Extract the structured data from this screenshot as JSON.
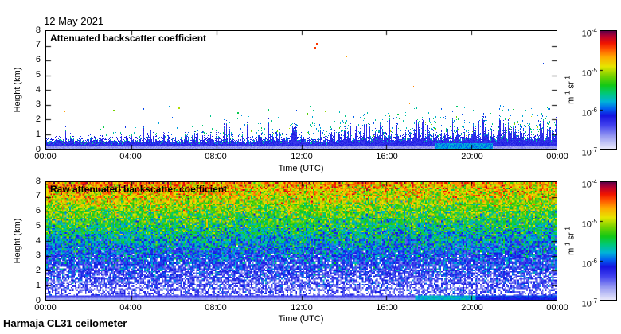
{
  "figure": {
    "date_label": "12 May 2021",
    "footer_label": "Harmaja CL31 ceilometer",
    "background": "#ffffff"
  },
  "axes": {
    "x_label": "Time (UTC)",
    "y_label": "Height (km)",
    "x_ticks": [
      "00:00",
      "04:00",
      "08:00",
      "12:00",
      "16:00",
      "20:00",
      "00:00"
    ],
    "y_ticks": [
      "0",
      "1",
      "2",
      "3",
      "4",
      "5",
      "6",
      "7",
      "8"
    ]
  },
  "panels": [
    {
      "title": "Attenuated backscatter coefficient"
    },
    {
      "title": "Raw attenuated backscatter coefficient"
    }
  ],
  "colorbar": {
    "ticks": [
      {
        "base": "10",
        "exp": "-4"
      },
      {
        "base": "10",
        "exp": "-5"
      },
      {
        "base": "10",
        "exp": "-6"
      },
      {
        "base": "10",
        "exp": "-7"
      }
    ],
    "unit_parts": {
      "m": "m",
      "m_exp": "-1",
      "sr": " sr",
      "sr_exp": "-1"
    }
  },
  "colors": {
    "axis": "#000000",
    "text": "#000000",
    "colormap_stops": [
      [
        0.0,
        "#e6e6fa"
      ],
      [
        0.1,
        "#9a9ef2"
      ],
      [
        0.2,
        "#4040ee"
      ],
      [
        0.28,
        "#1414e0"
      ],
      [
        0.34,
        "#0064f0"
      ],
      [
        0.4,
        "#00b4d8"
      ],
      [
        0.47,
        "#00c878"
      ],
      [
        0.54,
        "#14c814"
      ],
      [
        0.62,
        "#78d200"
      ],
      [
        0.7,
        "#e6e600"
      ],
      [
        0.78,
        "#ffaa00"
      ],
      [
        0.85,
        "#ff5000"
      ],
      [
        0.9,
        "#f01400"
      ],
      [
        0.96,
        "#b40032"
      ],
      [
        1.0,
        "#640046"
      ]
    ]
  },
  "chart_data": [
    {
      "type": "heatmap",
      "title": "Attenuated backscatter coefficient",
      "xlabel": "Time (UTC)",
      "ylabel": "Height (km)",
      "x_range_hours": [
        0,
        24
      ],
      "x_tick_labels": [
        "00:00",
        "04:00",
        "08:00",
        "12:00",
        "16:00",
        "20:00",
        "00:00"
      ],
      "ylim": [
        0,
        8
      ],
      "y_tick_step_km": 1,
      "color_scale": {
        "type": "log",
        "min": 1e-07,
        "max": 0.0001,
        "unit": "m-1 sr-1",
        "colormap": "white-blue-green-yellow-red-maroon (jet-like)"
      },
      "legend_position": "right colorbar",
      "grid": false,
      "content_summary": "Mostly white background; dense blue aerosol/boundary layer from 0 to ~0.6-1 km all day with spiky top edge; sparse cyan/green speckle dots up to ~2.5 km, densest and tallest after ~13:00; cyan-teal patch near surface ~18:30-21:00.",
      "features": {
        "layer_top_km_mean": 0.65,
        "layer_spike_top_km_max": 1.8,
        "dot_density_increase_after_hour": 13,
        "teal_surface_patch_hours": [
          18.3,
          21.0
        ],
        "notable_points": [
          {
            "hour": 3.15,
            "km": 2.6,
            "v": 0.62
          },
          {
            "hour": 6.2,
            "km": 2.78,
            "v": 0.66
          },
          {
            "hour": 9.0,
            "km": 2.45,
            "v": 0.5
          },
          {
            "hour": 12.62,
            "km": 6.85,
            "v": 0.87
          },
          {
            "hour": 12.68,
            "km": 7.15,
            "v": 0.87
          },
          {
            "hour": 13.1,
            "km": 2.55,
            "v": 0.64
          },
          {
            "hour": 16.5,
            "km": 2.3,
            "v": 0.5
          },
          {
            "hour": 19.3,
            "km": 2.85,
            "v": 0.48
          },
          {
            "hour": 21.4,
            "km": 2.6,
            "v": 0.45
          }
        ]
      }
    },
    {
      "type": "heatmap",
      "title": "Raw attenuated backscatter coefficient",
      "xlabel": "Time (UTC)",
      "ylabel": "Height (km)",
      "x_range_hours": [
        0,
        24
      ],
      "x_tick_labels": [
        "00:00",
        "04:00",
        "08:00",
        "12:00",
        "16:00",
        "20:00",
        "00:00"
      ],
      "ylim": [
        0,
        8
      ],
      "y_tick_step_km": 1,
      "color_scale": {
        "type": "log",
        "min": 1e-07,
        "max": 0.0001,
        "unit": "m-1 sr-1",
        "colormap": "white-blue-green-yellow-red-maroon (jet-like)"
      },
      "legend_position": "right colorbar",
      "grid": false,
      "content_summary": "Full-field random speckle noise whose magnitude grows with height: solid blue band 0-0.3 km (teal-green ~17:30-20:00, solid blue after 20:00), blue speckle with white gaps 0.4-2 km, green/cyan 2.5-5 km, yellow-green 5-6.5 km, orange with red/maroon flecks 6.5-8 km; extra orange intensity at top for hours 0-9 and ~11-14.",
      "features": {
        "noise_increases_with_height": true,
        "surface_band_km": 0.32,
        "white_gap_band_km": [
          0.4,
          2.0
        ],
        "orange_enhanced_top_hours": [
          0,
          9
        ],
        "orange_enhanced_midday_hours": [
          11,
          14.5
        ],
        "evening_teal_surface_hours": [
          17.3,
          20.2
        ]
      }
    }
  ]
}
